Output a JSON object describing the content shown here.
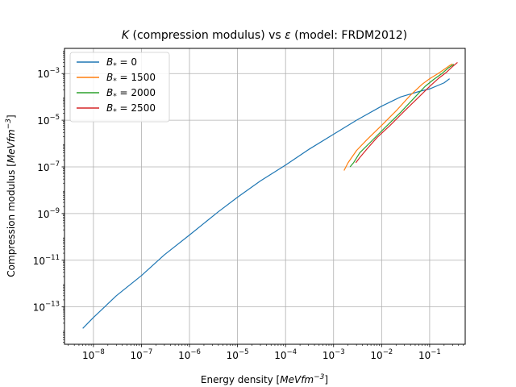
{
  "chart_data": {
    "type": "line",
    "title": "K (compression modulus) vs ε (model: FRDM2012)",
    "title_parts": {
      "k": "K",
      "middle": " (compression modulus) vs ",
      "eps": "ε",
      "tail": " (model: FRDM2012)"
    },
    "xlabel": "Energy density [MeVfm⁻³]",
    "xlabel_parts": {
      "prefix": "Energy density [",
      "unit_base": "MeVfm",
      "unit_exp": "−3",
      "suffix": "]"
    },
    "ylabel": "Compression modulus [MeVfm⁻³]",
    "ylabel_parts": {
      "prefix": "Compression modulus [",
      "unit_base": "MeVfm",
      "unit_exp": "−3",
      "suffix": "]"
    },
    "x_scale": "log",
    "y_scale": "log",
    "xlim": [
      2.5e-09,
      0.55
    ],
    "ylim": [
      2.5e-15,
      0.012
    ],
    "grid": true,
    "legend_position": "upper-left",
    "x_ticks": [
      {
        "value": 1e-08,
        "base": "10",
        "exp": "−8"
      },
      {
        "value": 1e-07,
        "base": "10",
        "exp": "−7"
      },
      {
        "value": 1e-06,
        "base": "10",
        "exp": "−6"
      },
      {
        "value": 1e-05,
        "base": "10",
        "exp": "−5"
      },
      {
        "value": 0.0001,
        "base": "10",
        "exp": "−4"
      },
      {
        "value": 0.001,
        "base": "10",
        "exp": "−3"
      },
      {
        "value": 0.01,
        "base": "10",
        "exp": "−2"
      },
      {
        "value": 0.1,
        "base": "10",
        "exp": "−1"
      }
    ],
    "y_ticks": [
      {
        "value": 1e-13,
        "base": "10",
        "exp": "−13"
      },
      {
        "value": 1e-11,
        "base": "10",
        "exp": "−11"
      },
      {
        "value": 1e-09,
        "base": "10",
        "exp": "−9"
      },
      {
        "value": 1e-07,
        "base": "10",
        "exp": "−7"
      },
      {
        "value": 1e-05,
        "base": "10",
        "exp": "−5"
      },
      {
        "value": 0.001,
        "base": "10",
        "exp": "−3"
      }
    ],
    "series": [
      {
        "name": "B* = 0",
        "label_sym": "B",
        "label_sub": "*",
        "label_val": " = 0",
        "color": "#1f77b4",
        "x": [
          6e-09,
          1e-08,
          3e-08,
          1e-07,
          3e-07,
          1e-06,
          4e-06,
          1e-05,
          3e-05,
          0.0001,
          0.0003,
          0.001,
          0.003,
          0.01,
          0.025,
          0.06,
          0.1,
          0.2,
          0.26
        ],
        "y": [
          1.2e-14,
          3.5e-14,
          3e-13,
          2.2e-12,
          1.7e-11,
          1.2e-10,
          1.2e-09,
          5e-09,
          2.5e-08,
          1.2e-07,
          5.5e-07,
          2.5e-06,
          1e-05,
          4e-05,
          0.0001,
          0.00017,
          0.00022,
          0.0004,
          0.0006
        ]
      },
      {
        "name": "B* = 1500",
        "label_sym": "B",
        "label_sub": "*",
        "label_val": " = 1500",
        "color": "#ff7f0e",
        "x": [
          0.00165,
          0.002,
          0.003,
          0.005,
          0.01,
          0.02,
          0.04,
          0.07,
          0.1,
          0.15,
          0.2,
          0.26,
          0.3
        ],
        "y": [
          7e-08,
          1.5e-07,
          5e-07,
          1.5e-06,
          6e-06,
          2.5e-05,
          0.00012,
          0.00035,
          0.0006,
          0.001,
          0.0015,
          0.0022,
          0.0026
        ]
      },
      {
        "name": "B* = 2000",
        "label_sym": "B",
        "label_sub": "*",
        "label_val": " = 2000",
        "color": "#2ca02c",
        "x": [
          0.0022,
          0.0026,
          0.0035,
          0.006,
          0.012,
          0.025,
          0.05,
          0.08,
          0.12,
          0.18,
          0.25,
          0.32
        ],
        "y": [
          1e-07,
          1.5e-07,
          4e-07,
          1.2e-06,
          5e-06,
          2.2e-05,
          0.0001,
          0.00028,
          0.00055,
          0.001,
          0.0018,
          0.0025
        ]
      },
      {
        "name": "B* = 2500",
        "label_sym": "B",
        "label_sub": "*",
        "label_val": " = 2500",
        "color": "#d62728",
        "x": [
          0.0029,
          0.0035,
          0.005,
          0.008,
          0.015,
          0.03,
          0.06,
          0.1,
          0.15,
          0.22,
          0.3,
          0.38
        ],
        "y": [
          1.5e-07,
          2.5e-07,
          6e-07,
          1.8e-06,
          6e-06,
          2.5e-05,
          0.0001,
          0.00028,
          0.0006,
          0.0011,
          0.002,
          0.003
        ]
      }
    ]
  }
}
